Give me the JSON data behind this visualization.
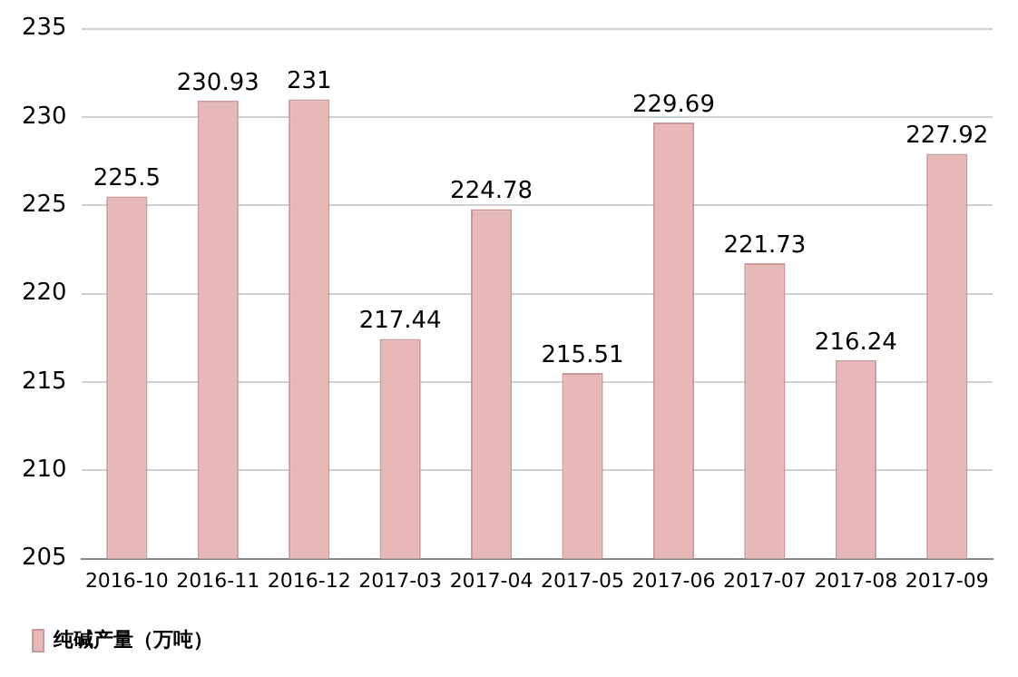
{
  "chart_data": {
    "type": "bar",
    "categories": [
      "2016-10",
      "2016-11",
      "2016-12",
      "2017-03",
      "2017-04",
      "2017-05",
      "2017-06",
      "2017-07",
      "2017-08",
      "2017-09"
    ],
    "series": [
      {
        "name": "纯碱产量（万吨）",
        "color": "#e6b9b8",
        "values": [
          225.5,
          230.93,
          231,
          217.44,
          224.78,
          215.51,
          229.69,
          221.73,
          216.24,
          227.92
        ]
      }
    ],
    "ylim": [
      205,
      235
    ],
    "yticks": [
      205,
      210,
      215,
      220,
      225,
      230,
      235
    ],
    "grid": "y",
    "legend": "bottom left",
    "data_labels": true
  }
}
